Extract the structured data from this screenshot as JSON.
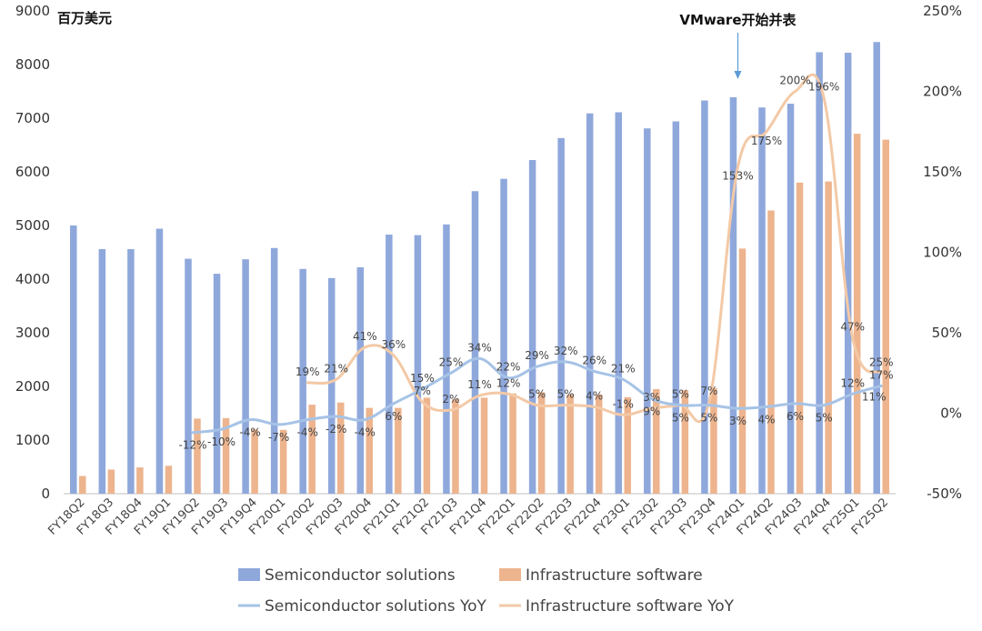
{
  "chart_data": {
    "type": "bar",
    "unit_label": "百万美元",
    "annotation": {
      "text": "VMware开始并表",
      "category": "FY24Q1"
    },
    "categories": [
      "FY18Q2",
      "FY18Q3",
      "FY18Q4",
      "FY19Q1",
      "FY19Q2",
      "FY19Q3",
      "FY19Q4",
      "FY20Q1",
      "FY20Q2",
      "FY20Q3",
      "FY20Q4",
      "FY21Q1",
      "FY21Q2",
      "FY21Q3",
      "FY21Q4",
      "FY22Q1",
      "FY22Q2",
      "FY22Q3",
      "FY22Q4",
      "FY23Q1",
      "FY23Q2",
      "FY23Q3",
      "FY23Q4",
      "FY24Q1",
      "FY24Q2",
      "FY24Q3",
      "FY24Q4",
      "FY25Q1",
      "FY25Q2"
    ],
    "y_left": {
      "min": 0,
      "max": 9000,
      "ticks": [
        0,
        1000,
        2000,
        3000,
        4000,
        5000,
        6000,
        7000,
        8000,
        9000
      ],
      "tick_labels": [
        "0",
        "1000",
        "2000",
        "3000",
        "4000",
        "5000",
        "6000",
        "7000",
        "8000",
        "9000"
      ]
    },
    "y_right": {
      "min": -50,
      "max": 250,
      "ticks": [
        -50,
        0,
        50,
        100,
        150,
        200,
        250
      ],
      "tick_labels": [
        "-50%",
        "0%",
        "50%",
        "100%",
        "150%",
        "200%",
        "250%"
      ]
    },
    "series": [
      {
        "name": "Semiconductor solutions",
        "kind": "bar",
        "axis": "left",
        "color": "#8FA8DC",
        "values": [
          5000,
          4560,
          4560,
          4940,
          4380,
          4100,
          4370,
          4580,
          4190,
          4020,
          4220,
          4830,
          4820,
          5020,
          5640,
          5870,
          6220,
          6630,
          7090,
          7110,
          6810,
          6940,
          7330,
          7390,
          7200,
          7270,
          8230,
          8220,
          8420
        ]
      },
      {
        "name": "Infrastructure software",
        "kind": "bar",
        "axis": "left",
        "color": "#EDB48E",
        "values": [
          330,
          450,
          490,
          520,
          1400,
          1410,
          1200,
          1190,
          1660,
          1700,
          1600,
          1600,
          1790,
          1760,
          1790,
          1870,
          1890,
          1850,
          1850,
          1800,
          1950,
          1930,
          1970,
          4570,
          5280,
          5800,
          5820,
          6710,
          6600
        ]
      },
      {
        "name": "Semiconductor solutions YoY",
        "kind": "line",
        "axis": "right",
        "color": "#A6C3E6",
        "values": [
          null,
          null,
          null,
          null,
          -12,
          -10,
          -4,
          -7,
          -4,
          -2,
          -4,
          6,
          15,
          25,
          34,
          22,
          29,
          32,
          26,
          21,
          9,
          5,
          5,
          3,
          4,
          6,
          5,
          12,
          17
        ],
        "labels": [
          null,
          null,
          null,
          null,
          "-12%",
          "-10%",
          "-4%",
          "-7%",
          "-4%",
          "-2%",
          "-4%",
          "6%",
          "15%",
          "25%",
          "34%",
          "22%",
          "29%",
          "32%",
          "26%",
          "21%",
          "9%",
          "5%",
          "5%",
          "3%",
          "4%",
          "6%",
          "5%",
          "12%",
          "17%"
        ]
      },
      {
        "name": "Infrastructure software YoY",
        "kind": "line",
        "axis": "right",
        "color": "#F3C9A6",
        "values": [
          null,
          null,
          null,
          null,
          null,
          null,
          null,
          null,
          19,
          21,
          41,
          36,
          7,
          2,
          11,
          12,
          5,
          5,
          4,
          -1,
          3,
          5,
          7,
          153,
          175,
          200,
          196,
          47,
          25
        ],
        "labels": [
          null,
          null,
          null,
          null,
          null,
          null,
          null,
          null,
          "19%",
          "21%",
          "41%",
          "36%",
          "7%",
          "2%",
          "11%",
          "12%",
          "5%",
          "5%",
          "4%",
          "-1%",
          "3%",
          "5%",
          "7%",
          "153%",
          "175%",
          "200%",
          "196%",
          "47%",
          "25%"
        ]
      }
    ],
    "extra_labels": [
      {
        "text": "11%",
        "category": "FY25Q2",
        "series": 1
      }
    ],
    "legend": {
      "position": "bottom",
      "items": [
        "Semiconductor solutions",
        "Infrastructure software",
        "Semiconductor solutions YoY",
        "Infrastructure software YoY"
      ]
    },
    "grid": false
  }
}
